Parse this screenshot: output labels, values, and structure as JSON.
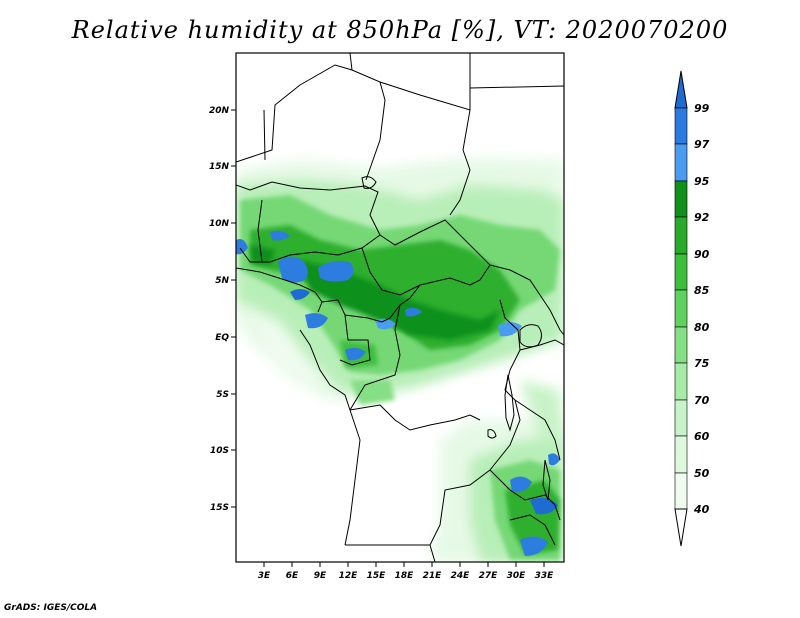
{
  "title": "Relative humidity at 850hPa [%], VT: 2020070200",
  "footer": "GrADS: IGES/COLA",
  "map": {
    "lon_range": [
      0,
      35
    ],
    "lat_range": [
      -20,
      25
    ],
    "lon_labels": [
      "3E",
      "6E",
      "9E",
      "12E",
      "15E",
      "18E",
      "21E",
      "24E",
      "27E",
      "30E",
      "33E"
    ],
    "lat_labels": [
      "20N",
      "15N",
      "10N",
      "5N",
      "EQ",
      "5S",
      "10S",
      "15S"
    ]
  },
  "colorbar": {
    "levels": [
      "99",
      "97",
      "95",
      "92",
      "90",
      "85",
      "80",
      "75",
      "70",
      "60",
      "50",
      "40"
    ],
    "colors": {
      "gt99": "#1e6cd2",
      "97_99": "#2a7ae0",
      "95_97": "#4a9cf0",
      "92_95": "#11901c",
      "90_92": "#2aaa2a",
      "85_90": "#3cbf3c",
      "80_85": "#5fd15f",
      "75_80": "#85df85",
      "70_75": "#a8eba8",
      "60_70": "#c8f3c8",
      "50_60": "#def8de",
      "40_50": "#eefbee",
      "lt40": "#ffffff"
    }
  }
}
